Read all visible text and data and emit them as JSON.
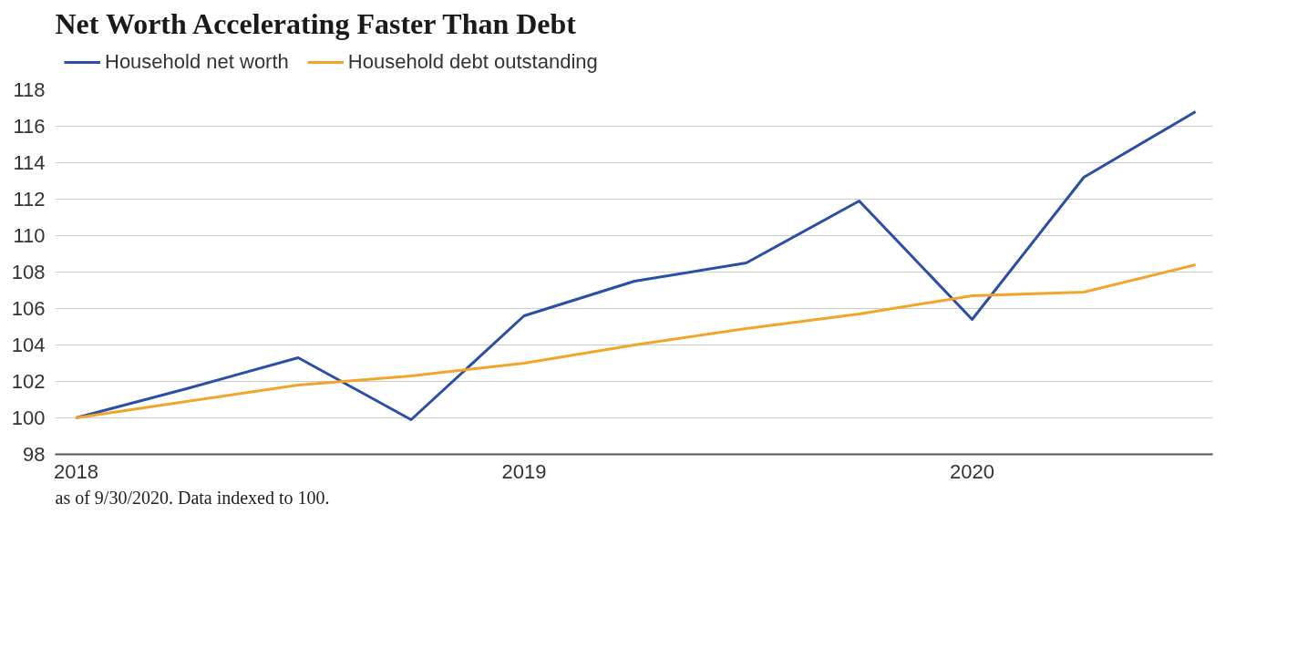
{
  "chart_data": {
    "type": "line",
    "title": "Net Worth Accelerating Faster Than Debt",
    "x": [
      "2018-01",
      "2018-04",
      "2018-07",
      "2018-10",
      "2019-01",
      "2019-04",
      "2019-07",
      "2019-10",
      "2020-01",
      "2020-04",
      "2020-07"
    ],
    "series": [
      {
        "name": "Household net worth",
        "color": "#2b4ea6",
        "values": [
          100,
          101.6,
          103.3,
          99.9,
          105.6,
          107.5,
          108.5,
          111.9,
          105.4,
          113.2,
          116.8
        ]
      },
      {
        "name": "Household debt outstanding",
        "color": "#f2a52a",
        "values": [
          100,
          100.9,
          101.8,
          102.3,
          103.0,
          104.0,
          104.9,
          105.7,
          106.7,
          106.9,
          108.4
        ]
      }
    ],
    "xlim": [
      "2017-12-15",
      "2020-07-15"
    ],
    "xticks": [
      "2018",
      "2019",
      "2020"
    ],
    "ylim": [
      98,
      118
    ],
    "yticks": [
      98,
      100,
      102,
      104,
      106,
      108,
      110,
      112,
      114,
      116,
      118
    ],
    "grid": "y",
    "legend": "top left",
    "marker": "none",
    "line_style": "solid",
    "annotations": [
      "as of 9/30/2020. Data indexed to 100."
    ]
  }
}
